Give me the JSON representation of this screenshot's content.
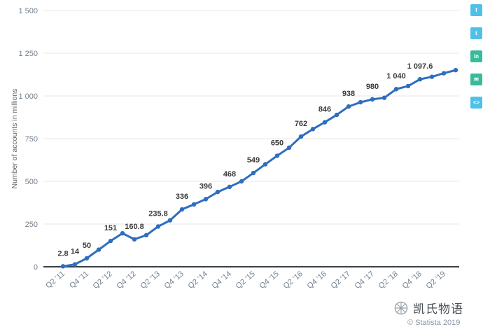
{
  "chart_data": {
    "type": "line",
    "title": "",
    "ylabel": "Number of accounts in millions",
    "ylim": [
      0,
      1500
    ],
    "yticks": [
      0,
      250,
      500,
      750,
      1000,
      1250,
      1500
    ],
    "ytick_labels": [
      "0",
      "250",
      "500",
      "750",
      "1 000",
      "1 250",
      "1 500"
    ],
    "x_tick_labels": [
      "Q2 '11",
      "Q4 '11",
      "Q2 '12",
      "Q4 '12",
      "Q2 '13",
      "Q4 '13",
      "Q2 '14",
      "Q4 '14",
      "Q2 '15",
      "Q4 '15",
      "Q2 '16",
      "Q4 '16",
      "Q2 '17",
      "Q4 '17",
      "Q2 '18",
      "Q4 '18",
      "Q2 '19"
    ],
    "x_tick_every": 2,
    "grid": "horizontal",
    "legend": "none",
    "series": [
      {
        "name": "Number of accounts",
        "color": "#2d6ebe",
        "values": [
          2.8,
          14,
          50,
          100,
          151,
          196,
          160.8,
          185,
          235.8,
          272,
          336,
          365,
          396,
          438,
          468,
          500,
          549,
          600,
          650,
          697,
          762,
          806,
          846,
          889,
          938,
          963,
          980,
          989,
          1040,
          1057.7,
          1097.6,
          1112,
          1132.7,
          1151
        ],
        "point_labels": {
          "0": "2.8",
          "1": "14",
          "2": "50",
          "4": "151",
          "6": "160.8",
          "8": "235.8",
          "10": "336",
          "12": "396",
          "14": "468",
          "16": "549",
          "18": "650",
          "20": "762",
          "22": "846",
          "24": "938",
          "26": "980",
          "28": "1 040",
          "30": "1 097.6"
        }
      }
    ]
  },
  "share_sidebar": {
    "buttons": [
      {
        "name": "facebook",
        "glyph": "f",
        "color": "#4fc1e9"
      },
      {
        "name": "twitter",
        "glyph": "t",
        "color": "#4fc1e9"
      },
      {
        "name": "linkedin",
        "glyph": "in",
        "color": "#37bc9b"
      },
      {
        "name": "mail",
        "glyph": "✉",
        "color": "#37bc9b"
      },
      {
        "name": "embed",
        "glyph": "&lt;&gt;",
        "color": "#4fc1e9"
      }
    ]
  },
  "watermark": {
    "brand": "凯氏物语",
    "copyright": "© Statista 2019"
  }
}
